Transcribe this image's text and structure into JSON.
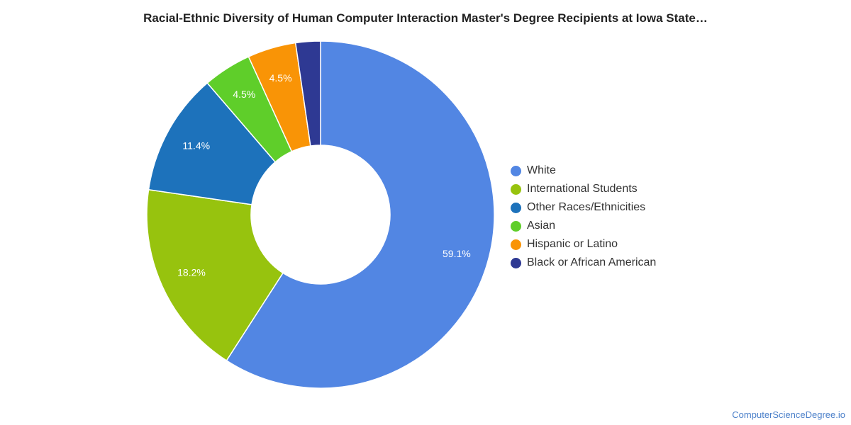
{
  "chart_data": {
    "type": "pie",
    "title": "Racial-Ethnic Diversity of Human Computer Interaction Master's Degree Recipients at Iowa State…",
    "donut": true,
    "legend_position": "right",
    "slices": [
      {
        "name": "White",
        "value": 59.1,
        "label": "59.1%",
        "color": "#5286e3"
      },
      {
        "name": "International Students",
        "value": 18.2,
        "label": "18.2%",
        "color": "#97c30e"
      },
      {
        "name": "Other Races/Ethnicities",
        "value": 11.4,
        "label": "11.4%",
        "color": "#1d72bb"
      },
      {
        "name": "Asian",
        "value": 4.5,
        "label": "4.5%",
        "color": "#5fce2a"
      },
      {
        "name": "Hispanic or Latino",
        "value": 4.5,
        "label": "4.5%",
        "color": "#f99406"
      },
      {
        "name": "Black or African American",
        "value": 2.3,
        "label": "",
        "color": "#2e3993"
      }
    ]
  },
  "footer": {
    "source": "ComputerScienceDegree.io"
  }
}
